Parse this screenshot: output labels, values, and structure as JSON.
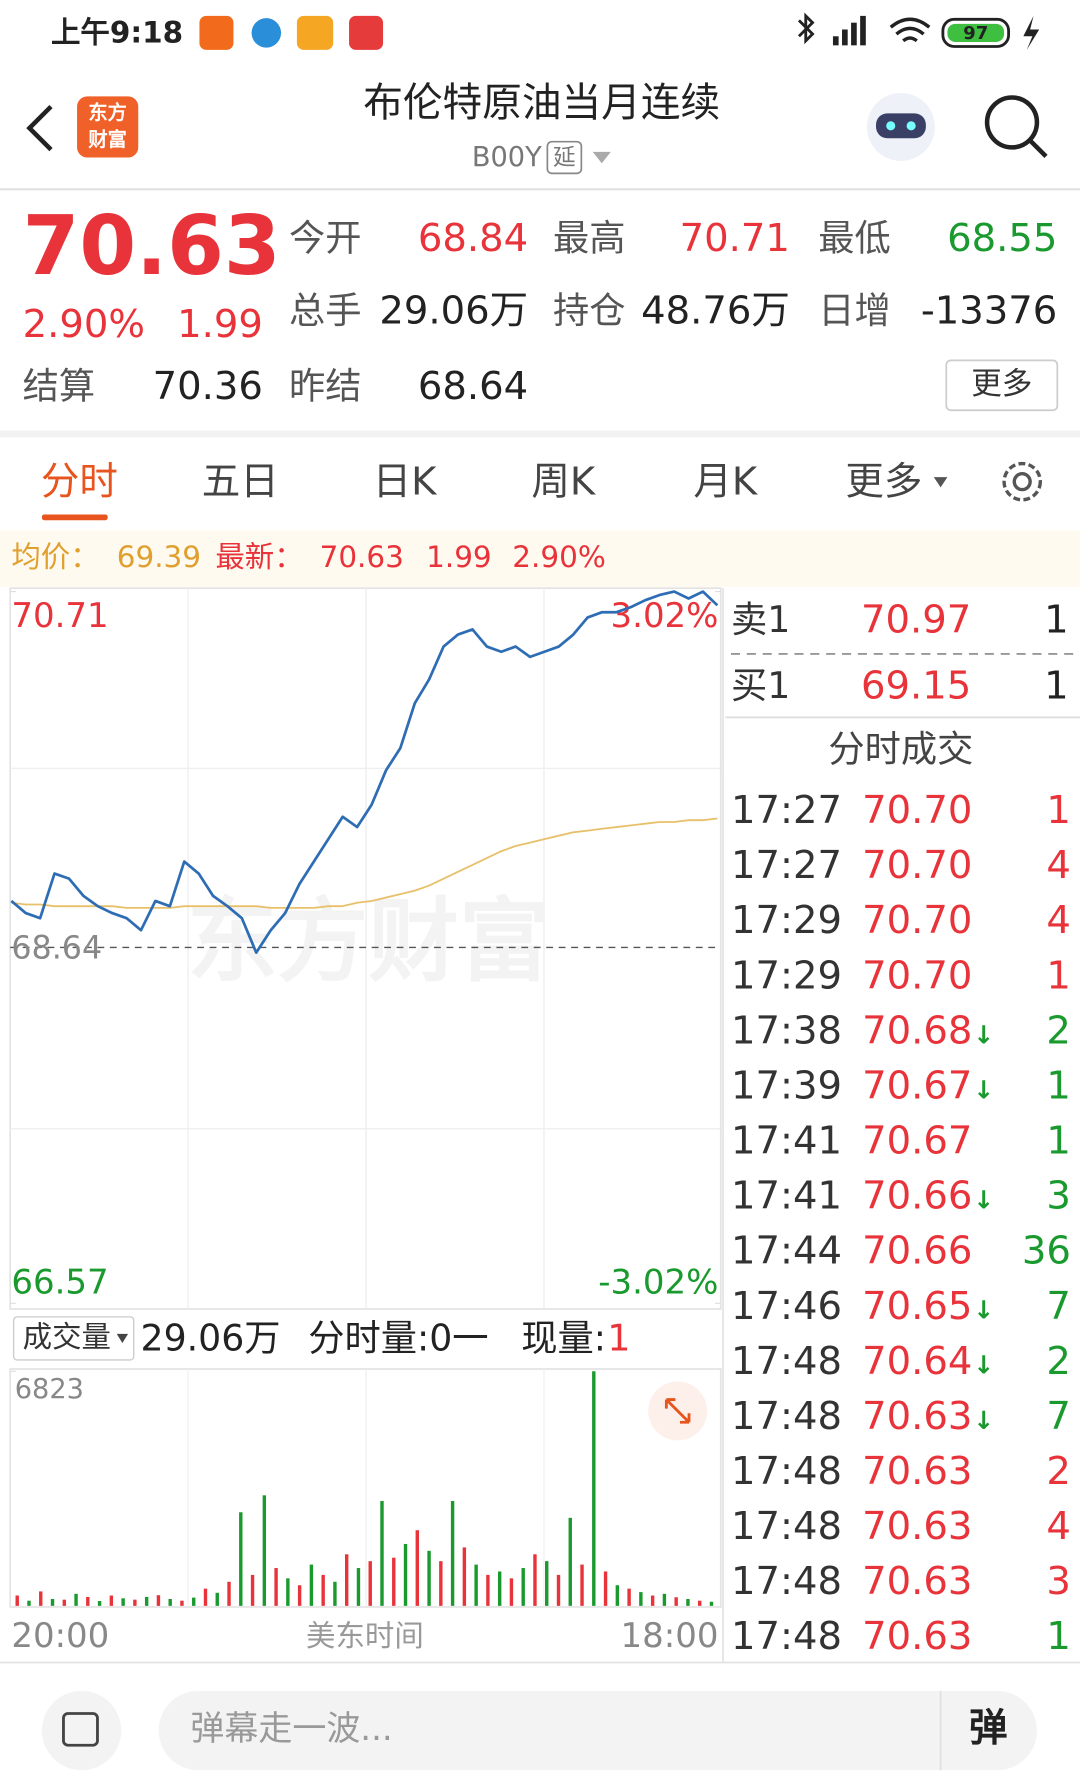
{
  "status_bar": {
    "time": "上午9:18",
    "battery": "97"
  },
  "header": {
    "logo": [
      "东方",
      "财富"
    ],
    "title": "布伦特原油当月连续",
    "code": "B00Y",
    "tag": "延"
  },
  "quote": {
    "price": "70.63",
    "change_pct": "2.90%",
    "change": "1.99",
    "color": "#e8333a",
    "fields": [
      {
        "label": "今开",
        "value": "68.84",
        "color": "#e8333a"
      },
      {
        "label": "最高",
        "value": "70.71",
        "color": "#e8333a"
      },
      {
        "label": "最低",
        "value": "68.55",
        "color": "#1a9a2e"
      },
      {
        "label": "总手",
        "value": "29.06万",
        "color": "#222222"
      },
      {
        "label": "持仓",
        "value": "48.76万",
        "color": "#222222"
      },
      {
        "label": "日增",
        "value": "-13376",
        "color": "#222222"
      },
      {
        "label": "结算",
        "value": "70.36",
        "color": "#222222"
      },
      {
        "label": "昨结",
        "value": "68.64",
        "color": "#222222"
      }
    ],
    "more": "更多"
  },
  "tabs": {
    "items": [
      "分时",
      "五日",
      "日K",
      "周K",
      "月K",
      "更多"
    ],
    "active": 0,
    "active_color": "#e8541e"
  },
  "info_bar": {
    "avg_label": "均价：",
    "avg": "69.39",
    "latest_label": "最新：",
    "latest": "70.63",
    "change": "1.99",
    "change_pct": "2.90%"
  },
  "chart_data": [
    {
      "type": "line",
      "watermark": "东方财富",
      "up_color": "#e8333a",
      "down_color": "#1a9a2e",
      "ylim": [
        66.57,
        70.71
      ],
      "yticks": [
        70.71,
        66.57
      ],
      "ref_line": 68.64,
      "y2lim": [
        -3.02,
        3.02
      ],
      "y2ticks": [
        {
          "value": 3.02,
          "label": "3.02%"
        },
        {
          "value": -3.02,
          "label": "-3.02%"
        }
      ],
      "series": [
        {
          "color": "#2e6db4",
          "values": [
            68.91,
            68.84,
            68.81,
            69.07,
            69.04,
            68.94,
            68.88,
            68.84,
            68.81,
            68.74,
            68.91,
            68.88,
            69.14,
            69.07,
            68.94,
            68.88,
            68.81,
            68.61,
            68.74,
            68.84,
            69.01,
            69.14,
            69.27,
            69.4,
            69.34,
            69.47,
            69.67,
            69.8,
            70.06,
            70.2,
            70.39,
            70.46,
            70.49,
            70.39,
            70.36,
            70.39,
            70.33,
            70.36,
            70.39,
            70.46,
            70.56,
            70.59,
            70.59,
            70.62,
            70.66,
            70.69,
            70.71,
            70.67,
            70.71,
            70.63
          ]
        },
        {
          "color": "#e8c06a",
          "values": [
            68.9,
            68.89,
            68.89,
            68.88,
            68.88,
            68.88,
            68.88,
            68.88,
            68.87,
            68.87,
            68.87,
            68.87,
            68.88,
            68.88,
            68.88,
            68.88,
            68.88,
            68.88,
            68.87,
            68.87,
            68.87,
            68.87,
            68.88,
            68.88,
            68.9,
            68.91,
            68.93,
            68.95,
            68.97,
            69.0,
            69.04,
            69.08,
            69.12,
            69.16,
            69.2,
            69.23,
            69.25,
            69.27,
            69.29,
            69.31,
            69.32,
            69.33,
            69.34,
            69.35,
            69.36,
            69.37,
            69.37,
            69.38,
            69.38,
            69.39
          ]
        }
      ]
    },
    {
      "type": "bar",
      "label": "成交量",
      "total": "29.06万",
      "interval_label": "分时量:0一",
      "current_label": "现量:",
      "current": "1",
      "colors": [
        "#e8333a",
        "#1a9a2e"
      ],
      "ylim": [
        0,
        6823
      ],
      "yticks": [
        6823
      ],
      "x_labels": [
        "20:00",
        "美东时间",
        "18:00"
      ],
      "values": [
        300,
        150,
        420,
        200,
        180,
        350,
        260,
        140,
        300,
        220,
        180,
        260,
        310,
        200,
        150,
        240,
        500,
        380,
        700,
        2723,
        900,
        3215,
        1100,
        800,
        600,
        1200,
        900,
        700,
        1500,
        1100,
        1300,
        3050,
        1400,
        1800,
        2200,
        1600,
        1300,
        3050,
        1700,
        1200,
        900,
        1000,
        800,
        1100,
        1500,
        1300,
        900,
        2560,
        1200,
        6823,
        1000,
        600,
        500,
        400,
        300,
        350,
        250,
        200,
        150,
        120
      ]
    }
  ],
  "order_book": {
    "quotes": [
      {
        "label": "卖1",
        "price": "70.97",
        "volume": "1"
      },
      {
        "label": "买1",
        "price": "69.15",
        "volume": "1"
      }
    ],
    "trades_title": "分时成交",
    "trades": [
      {
        "time": "17:27",
        "price": "70.70",
        "volume": "1",
        "color": "#e8333a"
      },
      {
        "time": "17:27",
        "price": "70.70",
        "volume": "4",
        "color": "#e8333a"
      },
      {
        "time": "17:29",
        "price": "70.70",
        "volume": "4",
        "color": "#e8333a"
      },
      {
        "time": "17:29",
        "price": "70.70",
        "volume": "1",
        "color": "#e8333a"
      },
      {
        "time": "17:38",
        "price": "70.68",
        "arrow": "↓",
        "volume": "2",
        "color": "#1a9a2e"
      },
      {
        "time": "17:39",
        "price": "70.67",
        "arrow": "↓",
        "volume": "1",
        "color": "#1a9a2e"
      },
      {
        "time": "17:41",
        "price": "70.67",
        "volume": "1",
        "color": "#1a9a2e"
      },
      {
        "time": "17:41",
        "price": "70.66",
        "arrow": "↓",
        "volume": "3",
        "color": "#1a9a2e"
      },
      {
        "time": "17:44",
        "price": "70.66",
        "volume": "36",
        "color": "#1a9a2e"
      },
      {
        "time": "17:46",
        "price": "70.65",
        "arrow": "↓",
        "volume": "7",
        "color": "#1a9a2e"
      },
      {
        "time": "17:48",
        "price": "70.64",
        "arrow": "↓",
        "volume": "2",
        "color": "#1a9a2e"
      },
      {
        "time": "17:48",
        "price": "70.63",
        "arrow": "↓",
        "volume": "7",
        "color": "#1a9a2e"
      },
      {
        "time": "17:48",
        "price": "70.63",
        "volume": "2",
        "color": "#e8333a"
      },
      {
        "time": "17:48",
        "price": "70.63",
        "volume": "4",
        "color": "#e8333a"
      },
      {
        "time": "17:48",
        "price": "70.63",
        "volume": "3",
        "color": "#e8333a"
      },
      {
        "time": "17:48",
        "price": "70.63",
        "volume": "1",
        "color": "#1a9a2e"
      }
    ]
  },
  "bottom_bar": {
    "input_placeholder": "弹幕走一波...",
    "danmaku_button": "弹"
  }
}
